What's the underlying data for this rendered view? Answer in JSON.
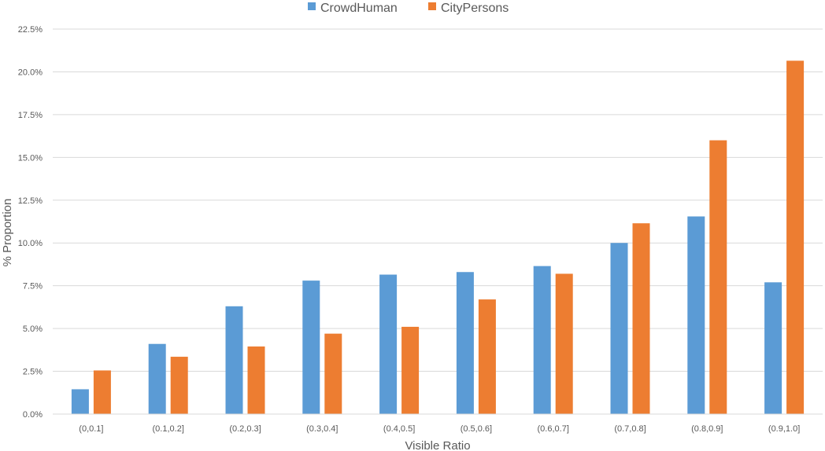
{
  "chart_data": {
    "type": "bar",
    "title": "",
    "xlabel": "Visible Ratio",
    "ylabel": "% Proportion",
    "categories": [
      "(0,0.1]",
      "(0.1,0.2]",
      "(0.2,0.3]",
      "(0.3,0.4]",
      "(0.4,0.5]",
      "(0.5,0.6]",
      "(0.6,0.7]",
      "(0.7,0.8]",
      "(0.8,0.9]",
      "(0.9,1.0]"
    ],
    "series": [
      {
        "name": "CrowdHuman",
        "color": "#5b9bd5",
        "values": [
          1.45,
          4.1,
          6.3,
          7.8,
          8.15,
          8.3,
          8.65,
          10.0,
          11.55,
          7.7
        ]
      },
      {
        "name": "CityPersons",
        "color": "#ed7d31",
        "values": [
          2.55,
          3.35,
          3.95,
          4.7,
          5.1,
          6.7,
          8.2,
          11.15,
          16.0,
          20.65
        ]
      }
    ],
    "ylim": [
      0,
      22.5
    ],
    "yticks": [
      0,
      2.5,
      5,
      7.5,
      10,
      12.5,
      15,
      17.5,
      20,
      22.5
    ],
    "ytick_labels": [
      "0.0%",
      "2.5%",
      "5.0%",
      "7.5%",
      "10.0%",
      "12.5%",
      "15.0%",
      "17.5%",
      "20.0%",
      "22.5%"
    ],
    "grid": true,
    "legend_position": "top-center"
  }
}
